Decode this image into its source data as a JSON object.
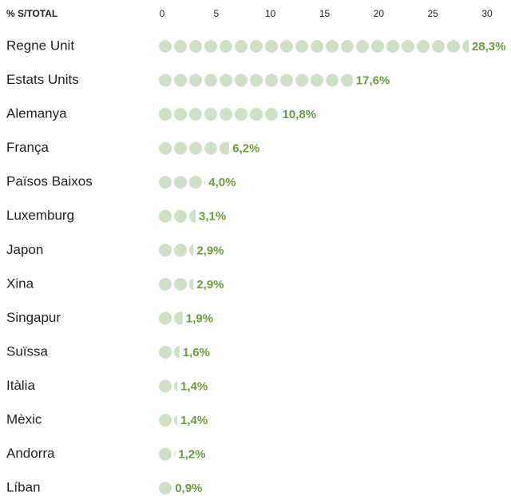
{
  "chart_data": {
    "type": "pictogram",
    "title": "% S/TOTAL",
    "categories": [
      "Regne Unit",
      "Estats Units",
      "Alemanya",
      "França",
      "Països Baixos",
      "Luxemburg",
      "Japon",
      "Xina",
      "Singapur",
      "Suïssa",
      "Itàlia",
      "Mèxic",
      "Andorra",
      "Líban"
    ],
    "values": [
      28.3,
      17.6,
      10.8,
      6.2,
      4.0,
      3.1,
      2.9,
      2.9,
      1.9,
      1.6,
      1.4,
      1.4,
      1.2,
      0.9
    ],
    "value_labels": [
      "28,3%",
      "17,6%",
      "10,8%",
      "6,2%",
      "4,0%",
      "3,1%",
      "2,9%",
      "2,9%",
      "1,9%",
      "1,6%",
      "1,4%",
      "1,4%",
      "1,2%",
      "0,9%"
    ],
    "color": "#cfe0c6",
    "label_color": "#6b9b3f",
    "xlim": [
      0,
      30
    ],
    "xticks": [
      0,
      5,
      10,
      15,
      20,
      25,
      30
    ]
  }
}
